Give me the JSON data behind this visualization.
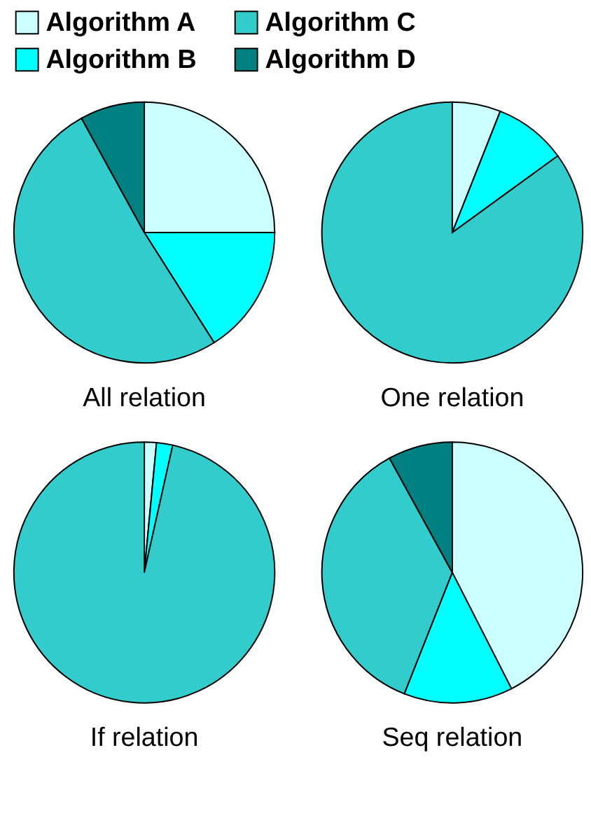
{
  "chart_data": [
    {
      "type": "pie",
      "title": "All relation",
      "categories": [
        "Algorithm A",
        "Algorithm B",
        "Algorithm C",
        "Algorithm D"
      ],
      "values": [
        25,
        16,
        51,
        8
      ],
      "colors": [
        "#ccffff",
        "#00ffff",
        "#33cccc",
        "#008080"
      ],
      "legend": "top"
    },
    {
      "type": "pie",
      "title": "One relation",
      "categories": [
        null,
        null,
        null,
        null
      ],
      "values": [
        6,
        9,
        85,
        0
      ],
      "colors": [
        "#ccffff",
        "#00ffff",
        "#33cccc",
        "#008080"
      ]
    },
    {
      "type": "pie",
      "title": "If relation",
      "categories": [
        null,
        null,
        null,
        null
      ],
      "values": [
        1.5,
        2,
        96.5,
        0
      ],
      "colors": [
        "#ccffff",
        "#00ffff",
        "#33cccc",
        "#008080"
      ]
    },
    {
      "type": "pie",
      "title": "Seq relation",
      "categories": [
        null,
        null,
        null,
        null
      ],
      "values": [
        42.5,
        13.5,
        36,
        8
      ],
      "colors": [
        "#ccffff",
        "#00ffff",
        "#33cccc",
        "#008080"
      ]
    }
  ]
}
